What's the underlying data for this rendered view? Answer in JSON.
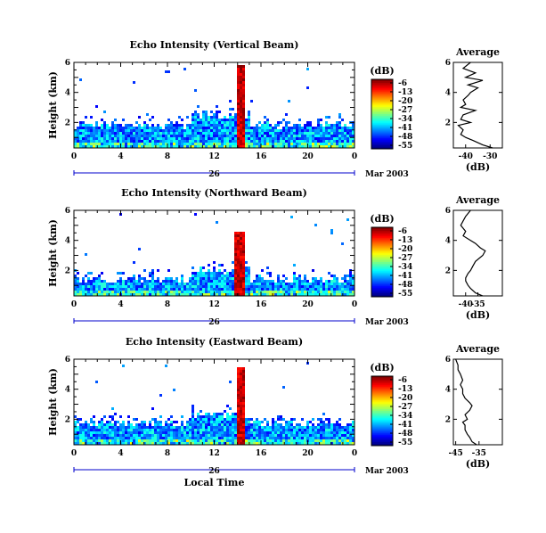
{
  "chart_data": [
    {
      "type": "heatmap",
      "title": "Echo Intensity (Vertical Beam)",
      "ylabel": "Height (km)",
      "xlabel": "",
      "x_ticks": [
        "0",
        "4",
        "8",
        "12",
        "16",
        "20",
        "0"
      ],
      "y_ticks": [
        "2",
        "4",
        "6"
      ],
      "xlim": [
        0,
        24
      ],
      "ylim": [
        0.3,
        6
      ],
      "date_day": "26",
      "date_month": "Mar 2003",
      "colorbar": {
        "unit": "(dB)",
        "ticks": [
          "-6",
          "-13",
          "-20",
          "-27",
          "-34",
          "-41",
          "-48",
          "-55"
        ]
      },
      "echo_layer_top_km": 1.9,
      "convective_column": {
        "start_hour": 13.8,
        "end_hour": 14.6,
        "top_km": 5.9
      },
      "profile": {
        "title": "Average",
        "xlabel": "(dB)",
        "xlim": [
          -45,
          -25
        ],
        "x_ticks": [
          "-40",
          "-30"
        ],
        "y_ticks": [
          "2",
          "4",
          "6"
        ],
        "height_km": [
          0.3,
          0.5,
          0.8,
          1.0,
          1.2,
          1.5,
          1.8,
          2.0,
          2.2,
          2.5,
          2.8,
          3.0,
          3.2,
          3.5,
          3.8,
          4.0,
          4.3,
          4.5,
          4.8,
          5.0,
          5.3,
          5.6,
          6.0
        ],
        "db": [
          -29,
          -33,
          -37,
          -40,
          -42,
          -41,
          -43,
          -38,
          -42,
          -41,
          -36,
          -42,
          -40,
          -41,
          -39,
          -38,
          -35,
          -39,
          -33,
          -40,
          -36,
          -41,
          -38
        ]
      }
    },
    {
      "type": "heatmap",
      "title": "Echo Intensity (Northward Beam)",
      "ylabel": "Height (km)",
      "xlabel": "",
      "x_ticks": [
        "0",
        "4",
        "8",
        "12",
        "16",
        "20",
        "0"
      ],
      "y_ticks": [
        "2",
        "4",
        "6"
      ],
      "xlim": [
        0,
        24
      ],
      "ylim": [
        0.3,
        6
      ],
      "date_day": "26",
      "date_month": "Mar 2003",
      "colorbar": {
        "unit": "(dB)",
        "ticks": [
          "-6",
          "-13",
          "-20",
          "-27",
          "-34",
          "-41",
          "-48",
          "-55"
        ]
      },
      "echo_layer_top_km": 1.5,
      "convective_column": {
        "start_hour": 13.5,
        "end_hour": 14.4,
        "top_km": 4.6
      },
      "profile": {
        "title": "Average",
        "xlabel": "(dB)",
        "xlim": [
          -45,
          -25
        ],
        "x_ticks": [
          "-40",
          "-35"
        ],
        "y_ticks": [
          "2",
          "4",
          "6"
        ],
        "height_km": [
          0.3,
          0.5,
          0.8,
          1.0,
          1.3,
          1.5,
          1.8,
          2.0,
          2.3,
          2.6,
          3.0,
          3.3,
          3.5,
          3.8,
          4.0,
          4.3,
          4.6,
          5.0,
          5.3,
          5.6,
          6.0
        ],
        "db": [
          -33,
          -36,
          -38,
          -39,
          -40,
          -40,
          -39,
          -38,
          -37,
          -36,
          -33,
          -32,
          -34,
          -36,
          -38,
          -41,
          -40,
          -42,
          -41,
          -40,
          -38
        ]
      }
    },
    {
      "type": "heatmap",
      "title": "Echo Intensity (Eastward Beam)",
      "ylabel": "Height (km)",
      "xlabel": "Local Time",
      "x_ticks": [
        "0",
        "4",
        "8",
        "12",
        "16",
        "20",
        "0"
      ],
      "y_ticks": [
        "2",
        "4",
        "6"
      ],
      "xlim": [
        0,
        24
      ],
      "ylim": [
        0.3,
        6
      ],
      "date_day": "26",
      "date_month": "Mar 2003",
      "colorbar": {
        "unit": "(dB)",
        "ticks": [
          "-6",
          "-13",
          "-20",
          "-27",
          "-34",
          "-41",
          "-48",
          "-55"
        ]
      },
      "echo_layer_top_km": 1.8,
      "convective_column": {
        "start_hour": 13.8,
        "end_hour": 14.6,
        "top_km": 5.6
      },
      "profile": {
        "title": "Average",
        "xlabel": "(dB)",
        "xlim": [
          -46,
          -25
        ],
        "x_ticks": [
          "-45",
          "-35"
        ],
        "y_ticks": [
          "2",
          "4",
          "6"
        ],
        "height_km": [
          0.3,
          0.5,
          0.8,
          1.0,
          1.3,
          1.6,
          1.8,
          2.0,
          2.3,
          2.6,
          2.9,
          3.1,
          3.4,
          3.7,
          4.0,
          4.3,
          4.6,
          5.0,
          5.3,
          5.6,
          6.0
        ],
        "db": [
          -36,
          -38,
          -39,
          -40,
          -41,
          -41,
          -42,
          -40,
          -41,
          -39,
          -38,
          -39,
          -41,
          -42,
          -42,
          -43,
          -42,
          -43,
          -44,
          -44,
          -45
        ]
      }
    }
  ]
}
